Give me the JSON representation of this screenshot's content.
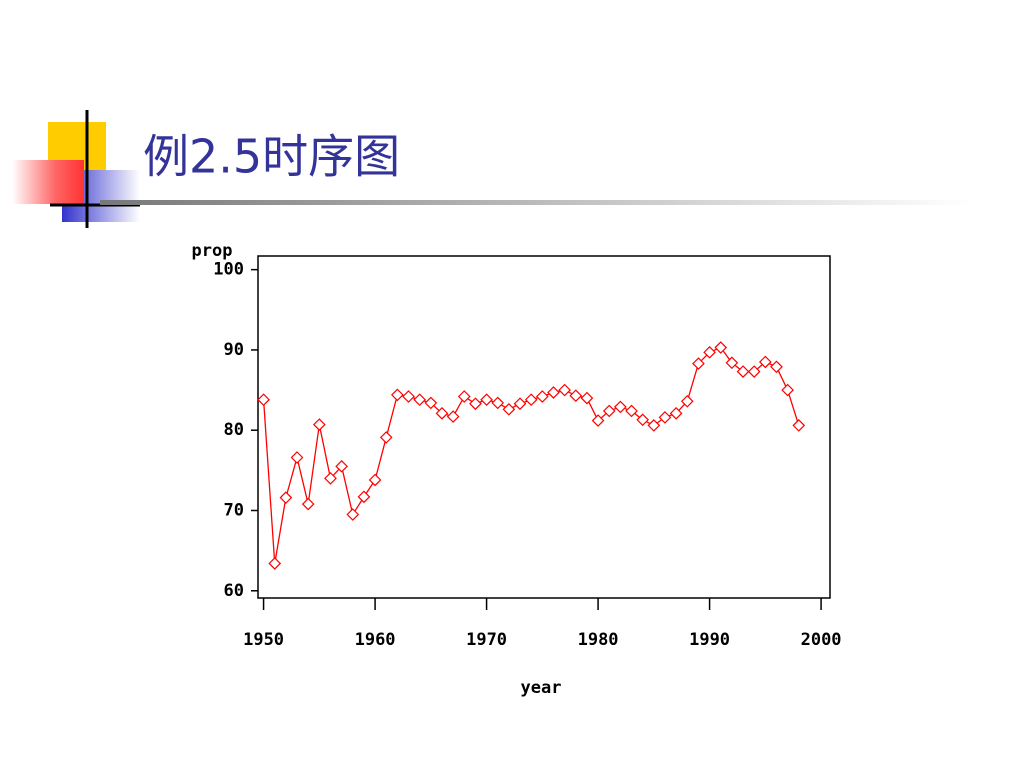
{
  "chart_data": {
    "type": "line",
    "title": "例2.5时序图",
    "y_label": "prop",
    "x_label": "year",
    "x": [
      1950,
      1951,
      1952,
      1953,
      1954,
      1955,
      1956,
      1957,
      1958,
      1959,
      1960,
      1961,
      1962,
      1963,
      1964,
      1965,
      1966,
      1967,
      1968,
      1969,
      1970,
      1971,
      1972,
      1973,
      1974,
      1975,
      1976,
      1977,
      1978,
      1979,
      1980,
      1981,
      1982,
      1983,
      1984,
      1985,
      1986,
      1987,
      1988,
      1989,
      1990,
      1991,
      1992,
      1993,
      1994,
      1995,
      1996,
      1997,
      1998
    ],
    "series": [
      {
        "name": "prop",
        "color": "#ff0000",
        "values": [
          83.8,
          63.4,
          71.6,
          76.6,
          70.8,
          80.7,
          74.0,
          75.5,
          69.5,
          71.7,
          73.8,
          79.1,
          84.4,
          84.2,
          83.8,
          83.4,
          82.1,
          81.7,
          84.2,
          83.3,
          83.8,
          83.4,
          82.6,
          83.3,
          83.8,
          84.2,
          84.7,
          85.0,
          84.3,
          84.0,
          81.2,
          82.4,
          82.9,
          82.4,
          81.3,
          80.6,
          81.6,
          82.1,
          83.6,
          88.3,
          89.7,
          90.3,
          88.4,
          87.3,
          87.3,
          88.5,
          87.9,
          85.0,
          80.6
        ]
      }
    ],
    "xlim": [
      1949.5,
      2000.8
    ],
    "xticks": [
      1950,
      1960,
      1970,
      1980,
      1990,
      2000
    ],
    "ylim": [
      59.1,
      101.7
    ],
    "yticks": [
      60,
      70,
      80,
      90,
      100
    ],
    "grid": false
  }
}
